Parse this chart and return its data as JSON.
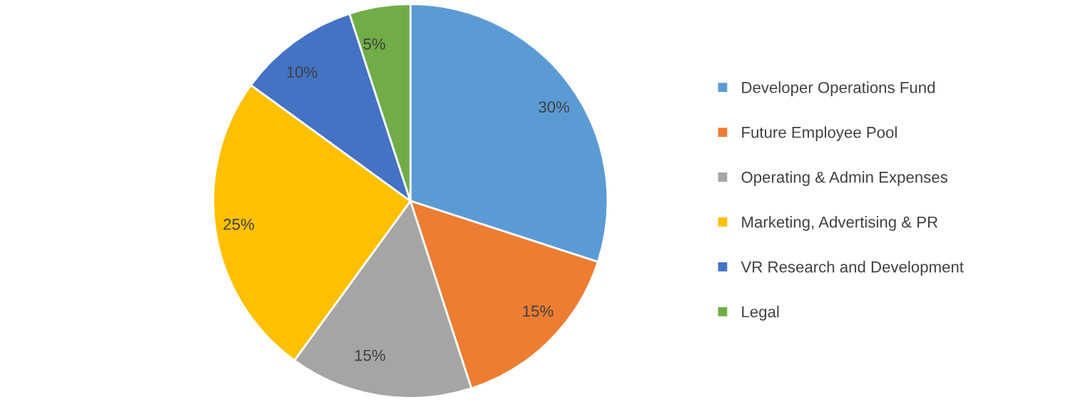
{
  "chart_data": {
    "type": "pie",
    "categories": [
      "Developer Operations Fund",
      "Future Employee Pool",
      "Operating & Admin Expenses",
      "Marketing, Advertising & PR",
      "VR Research and Development",
      "Legal"
    ],
    "values": [
      30,
      15,
      15,
      25,
      10,
      5
    ],
    "value_labels": [
      "30%",
      "15%",
      "15%",
      "25%",
      "10%",
      "5%"
    ],
    "colors": [
      "#5b9bd5",
      "#ed7d31",
      "#a5a5a5",
      "#ffc000",
      "#4472c4",
      "#70ad47"
    ],
    "legend": "right"
  }
}
